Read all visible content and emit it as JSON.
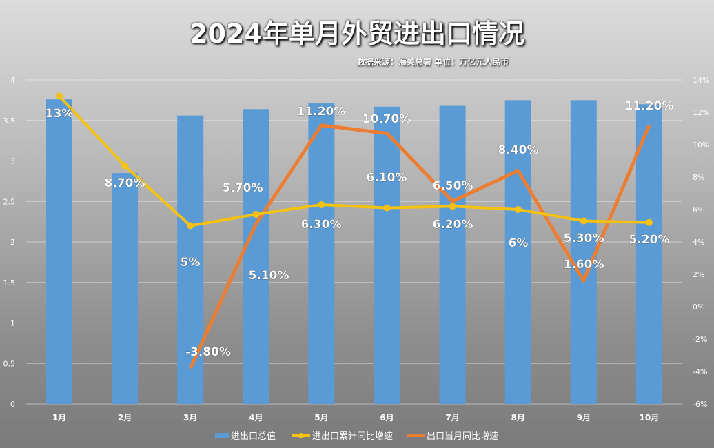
{
  "chart_data": {
    "type": "bar+line",
    "title": "2024年单月外贸进出口情况",
    "subtitle": "数据来源：海关总署 单位：万亿元人民币",
    "categories": [
      "1月",
      "2月",
      "3月",
      "4月",
      "5月",
      "6月",
      "7月",
      "8月",
      "9月",
      "10月"
    ],
    "y_left": {
      "range": [
        0,
        4
      ],
      "ticks": [
        "0",
        "0.5",
        "1",
        "1.5",
        "2",
        "2.5",
        "3",
        "3.5",
        "4"
      ]
    },
    "y_right": {
      "range": [
        -6,
        14
      ],
      "ticks": [
        "-6%",
        "-4%",
        "-2%",
        "0%",
        "2%",
        "4%",
        "6%",
        "8%",
        "10%",
        "12%",
        "14%"
      ]
    },
    "grid": true,
    "legend_position": "bottom",
    "series": [
      {
        "name": "进出口总值",
        "type": "bar",
        "axis": "left",
        "color": "#5b9bd5",
        "values": [
          3.76,
          2.85,
          3.56,
          3.64,
          3.71,
          3.67,
          3.68,
          3.75,
          3.75,
          3.7
        ]
      },
      {
        "name": "进出口累计同比增速",
        "type": "line",
        "axis": "right",
        "color": "#f5c211",
        "values": [
          13,
          8.7,
          5,
          5.7,
          6.3,
          6.1,
          6.2,
          6,
          5.3,
          5.2
        ],
        "labels": [
          "13%",
          "8.70%",
          "5%",
          "5.70%",
          "6.30%",
          "6.10%",
          "6.20%",
          "6%",
          "5.30%",
          "5.20%"
        ]
      },
      {
        "name": "出口当月同比增速",
        "type": "line",
        "axis": "right",
        "color": "#ed7d31",
        "values": [
          null,
          null,
          -3.8,
          5.1,
          11.2,
          10.7,
          6.5,
          8.4,
          1.6,
          11.2
        ],
        "labels": [
          null,
          null,
          "-3.80%",
          "5.10%",
          "11.20%",
          "10.70%",
          "6.50%",
          "8.40%",
          "1.60%",
          "11.20%"
        ]
      }
    ]
  }
}
